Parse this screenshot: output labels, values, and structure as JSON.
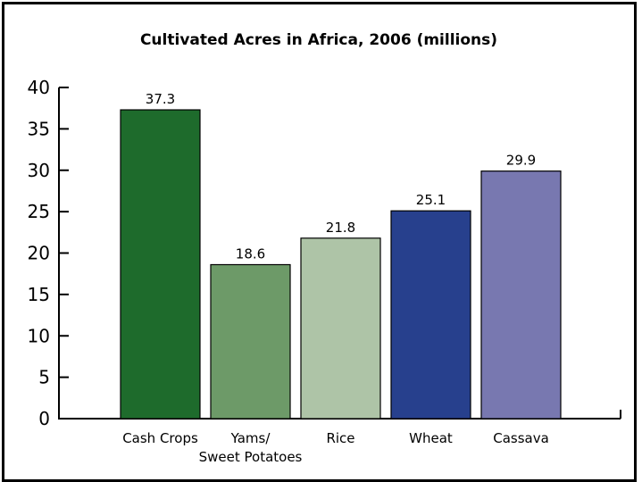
{
  "chart_data": {
    "type": "bar",
    "title": "Cultivated Acres in Africa, 2006 (millions)",
    "xlabel": "",
    "ylabel": "",
    "ylim": [
      0,
      40
    ],
    "yticks": [
      0,
      5,
      10,
      15,
      20,
      25,
      30,
      35,
      40
    ],
    "grid": false,
    "legend": "none",
    "categories": [
      [
        "Cash Crops"
      ],
      [
        "Yams/",
        "Sweet Potatoes"
      ],
      [
        "Rice"
      ],
      [
        "Wheat"
      ],
      [
        "Cassava"
      ]
    ],
    "values": [
      37.3,
      18.6,
      21.8,
      25.1,
      29.9
    ],
    "value_labels": [
      "37.3",
      "18.6",
      "21.8",
      "25.1",
      "29.9"
    ],
    "colors": [
      "#1e6b2c",
      "#6d9a68",
      "#aec4a7",
      "#27408d",
      "#7878b0"
    ]
  }
}
